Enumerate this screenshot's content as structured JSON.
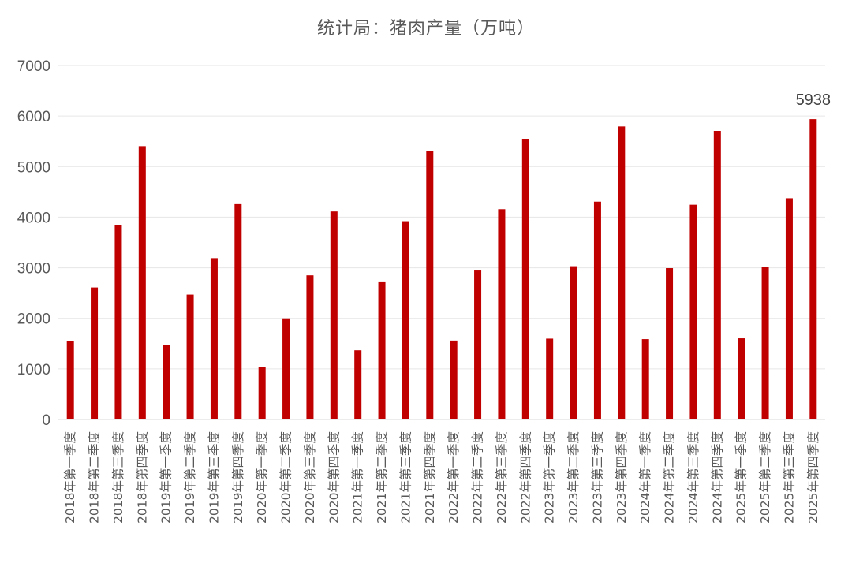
{
  "chart_data": {
    "type": "bar",
    "title": "统计局：猪肉产量（万吨）",
    "xlabel": "",
    "ylabel": "",
    "ylim": [
      0,
      7000
    ],
    "yticks": [
      0,
      1000,
      2000,
      3000,
      4000,
      5000,
      6000,
      7000
    ],
    "grid": true,
    "legend": "none",
    "bar_color": "#C00000",
    "categories": [
      "2018年第一季度",
      "2018年第二季度",
      "2018年第三季度",
      "2018年第四季度",
      "2019年第一季度",
      "2019年第二季度",
      "2019年第三季度",
      "2019年第四季度",
      "2020年第一季度",
      "2020年第二季度",
      "2020年第三季度",
      "2020年第四季度",
      "2021年第一季度",
      "2021年第二季度",
      "2021年第三季度",
      "2021年第四季度",
      "2022年第一季度",
      "2022年第二季度",
      "2022年第三季度",
      "2022年第四季度",
      "2023年第一季度",
      "2023年第二季度",
      "2023年第三季度",
      "2023年第四季度",
      "2024年第一季度",
      "2024年第二季度",
      "2024年第三季度",
      "2024年第四季度",
      "2025年第一季度",
      "2025年第二季度",
      "2025年第三季度",
      "2025年第四季度"
    ],
    "values": [
      1546,
      2610,
      3843,
      5404,
      1472,
      2470,
      3190,
      4258,
      1040,
      2000,
      2850,
      4113,
      1369,
      2714,
      3920,
      5307,
      1561,
      2946,
      4158,
      5550,
      1599,
      3031,
      4307,
      5794,
      1589,
      2993,
      4246,
      5706,
      1605,
      3020,
      4374,
      5938
    ],
    "annotations": [
      {
        "index": 31,
        "text": "5938"
      }
    ]
  }
}
